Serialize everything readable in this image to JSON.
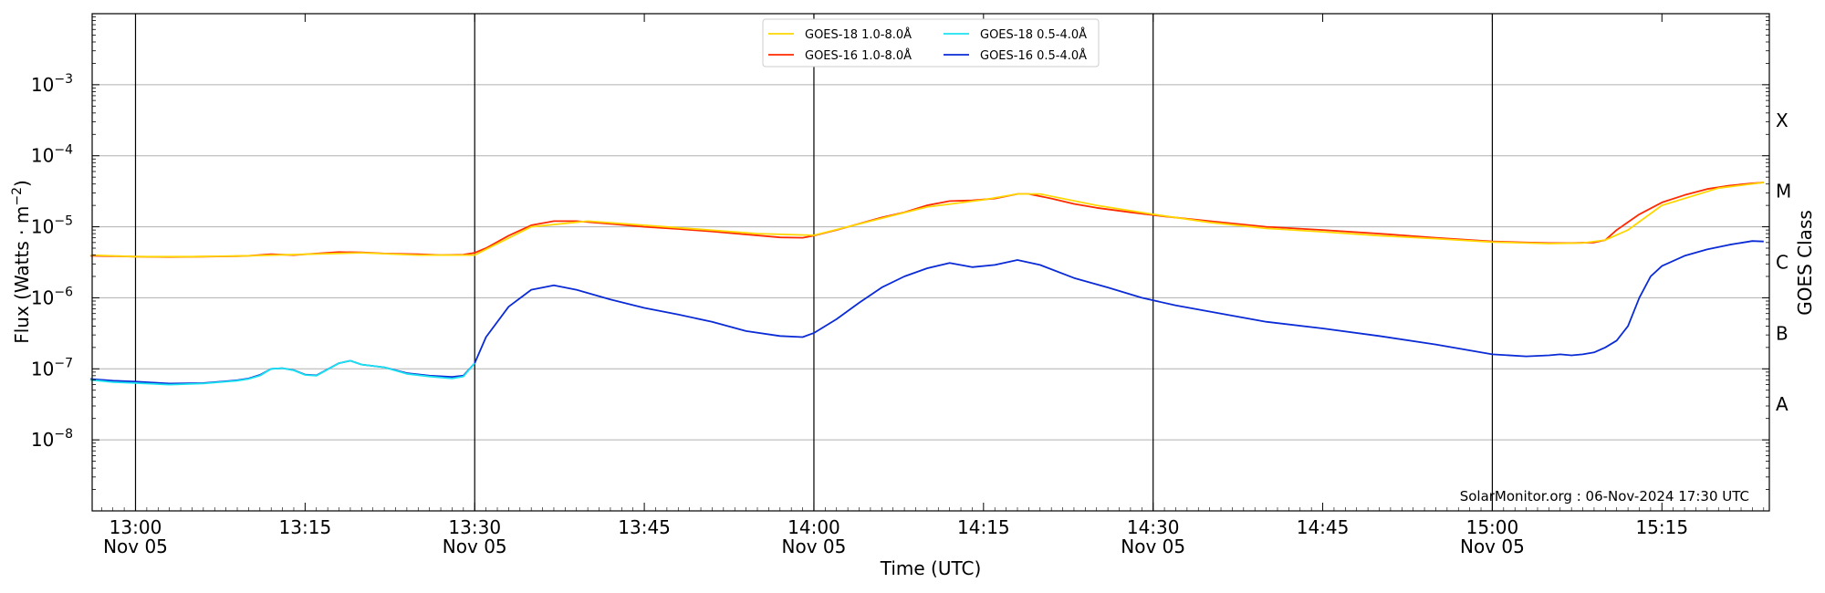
{
  "chart_data": {
    "type": "line",
    "ylabel_main": "Flux (Watts · m",
    "ylabel_exp": "−2",
    "ylabel_close": ")",
    "xlabel": "Time (UTC)",
    "right_label": "GOES Class",
    "credit": "SolarMonitor.org : 06-Nov-2024 17:30 UTC",
    "y_scale": "log",
    "ylim": [
      1e-09,
      0.01
    ],
    "y_ticks": [
      {
        "value": 1e-08,
        "exp": "−8"
      },
      {
        "value": 1e-07,
        "exp": "−7"
      },
      {
        "value": 1e-06,
        "exp": "−6"
      },
      {
        "value": 1e-05,
        "exp": "−5"
      },
      {
        "value": 0.0001,
        "exp": "−4"
      },
      {
        "value": 0.001,
        "exp": "−3"
      }
    ],
    "y_tick_base": "10",
    "xlim": [
      "2024-11-05 12:56:10",
      "2024-11-05 15:24:30"
    ],
    "x_ticks": [
      {
        "time": "13:00",
        "label": "13:00",
        "sub": "Nov 05"
      },
      {
        "time": "13:15",
        "label": "13:15",
        "sub": ""
      },
      {
        "time": "13:30",
        "label": "13:30",
        "sub": "Nov 05"
      },
      {
        "time": "13:45",
        "label": "13:45",
        "sub": ""
      },
      {
        "time": "14:00",
        "label": "14:00",
        "sub": "Nov 05"
      },
      {
        "time": "14:15",
        "label": "14:15",
        "sub": ""
      },
      {
        "time": "14:30",
        "label": "14:30",
        "sub": "Nov 05"
      },
      {
        "time": "14:45",
        "label": "14:45",
        "sub": ""
      },
      {
        "time": "15:00",
        "label": "15:00",
        "sub": "Nov 05"
      },
      {
        "time": "15:15",
        "label": "15:15",
        "sub": ""
      }
    ],
    "vlines": [
      "13:00",
      "13:30",
      "14:00",
      "14:30",
      "15:00"
    ],
    "goes_classes": [
      {
        "label": "A",
        "value": 3.16e-08
      },
      {
        "label": "B",
        "value": 3.16e-07
      },
      {
        "label": "C",
        "value": 3.16e-06
      },
      {
        "label": "M",
        "value": 3.16e-05
      },
      {
        "label": "X",
        "value": 0.000316
      }
    ],
    "grid": true,
    "legend_position": "top-center",
    "series": [
      {
        "name": "GOES-18 1.0-8.0Å",
        "color": "#ffd700",
        "x": [
          "12:56",
          "13:00",
          "13:05",
          "13:10",
          "13:15",
          "13:20",
          "13:25",
          "13:30",
          "13:35",
          "13:40",
          "13:45",
          "13:50",
          "13:55",
          "14:00",
          "14:05",
          "14:10",
          "14:15",
          "14:18",
          "14:20",
          "14:25",
          "14:30",
          "14:35",
          "14:40",
          "14:45",
          "14:50",
          "14:55",
          "15:00",
          "15:05",
          "15:08",
          "15:10",
          "15:12",
          "15:15",
          "15:20",
          "15:24"
        ],
        "y": [
          4e-06,
          3.8e-06,
          3.8e-06,
          3.9e-06,
          4.1e-06,
          4.3e-06,
          4e-06,
          4e-06,
          1e-05,
          1.2e-05,
          1.05e-05,
          9.2e-06,
          8e-06,
          7.6e-06,
          1.2e-05,
          1.9e-05,
          2.4e-05,
          2.9e-05,
          2.9e-05,
          2e-05,
          1.5e-05,
          1.15e-05,
          9.5e-06,
          8.5e-06,
          7.5e-06,
          6.8e-06,
          6.1e-06,
          5.8e-06,
          5.9e-06,
          6.5e-06,
          9e-06,
          2e-05,
          3.5e-05,
          4.2e-05
        ]
      },
      {
        "name": "GOES-16 1.0-8.0Å",
        "color": "#ff2a00",
        "x": [
          "12:56",
          "12:58",
          "13:00",
          "13:03",
          "13:06",
          "13:09",
          "13:10",
          "13:12",
          "13:14",
          "13:16",
          "13:18",
          "13:20",
          "13:22",
          "13:25",
          "13:27",
          "13:29",
          "13:30",
          "13:31",
          "13:33",
          "13:35",
          "13:37",
          "13:39",
          "13:42",
          "13:45",
          "13:48",
          "13:51",
          "13:54",
          "13:57",
          "13:59",
          "14:00",
          "14:02",
          "14:04",
          "14:06",
          "14:08",
          "14:10",
          "14:12",
          "14:14",
          "14:16",
          "14:18",
          "14:19",
          "14:21",
          "14:23",
          "14:25",
          "14:28",
          "14:31",
          "14:35",
          "14:40",
          "14:45",
          "14:50",
          "14:55",
          "15:00",
          "15:03",
          "15:05",
          "15:07",
          "15:09",
          "15:10",
          "15:11",
          "15:13",
          "15:15",
          "15:17",
          "15:19",
          "15:21",
          "15:23",
          "15:24"
        ],
        "y": [
          3.9e-06,
          3.85e-06,
          3.8e-06,
          3.75e-06,
          3.8e-06,
          3.85e-06,
          3.9e-06,
          4.1e-06,
          4e-06,
          4.2e-06,
          4.4e-06,
          4.35e-06,
          4.2e-06,
          4.1e-06,
          4e-06,
          4.05e-06,
          4.3e-06,
          5e-06,
          7.5e-06,
          1.05e-05,
          1.2e-05,
          1.2e-05,
          1.1e-05,
          1e-05,
          9.3e-06,
          8.6e-06,
          7.8e-06,
          7.1e-06,
          7e-06,
          7.5e-06,
          9e-06,
          1.1e-05,
          1.35e-05,
          1.6e-05,
          2e-05,
          2.3e-05,
          2.35e-05,
          2.5e-05,
          2.9e-05,
          2.9e-05,
          2.5e-05,
          2.1e-05,
          1.85e-05,
          1.6e-05,
          1.4e-05,
          1.2e-05,
          1e-05,
          9e-06,
          8e-06,
          7e-06,
          6.2e-06,
          6e-06,
          5.9e-06,
          5.9e-06,
          6e-06,
          6.5e-06,
          9e-06,
          1.5e-05,
          2.2e-05,
          2.8e-05,
          3.4e-05,
          3.8e-05,
          4.1e-05,
          4.2e-05
        ]
      },
      {
        "name": "GOES-18 0.5-4.0Å",
        "color": "#19e3f0",
        "x": [
          "12:56",
          "12:58",
          "13:00",
          "13:03",
          "13:06",
          "13:09",
          "13:10",
          "13:11",
          "13:12",
          "13:13",
          "13:14",
          "13:15",
          "13:16",
          "13:18",
          "13:19",
          "13:20",
          "13:22",
          "13:24",
          "13:26",
          "13:28",
          "13:29",
          "13:30"
        ],
        "y": [
          7e-08,
          6.5e-08,
          6.3e-08,
          6e-08,
          6.2e-08,
          6.8e-08,
          7.2e-08,
          8e-08,
          1e-07,
          1.02e-07,
          9.5e-08,
          8.2e-08,
          8e-08,
          1.2e-07,
          1.3e-07,
          1.15e-07,
          1.05e-07,
          8.5e-08,
          7.8e-08,
          7.3e-08,
          7.8e-08,
          1.2e-07
        ]
      },
      {
        "name": "GOES-16 0.5-4.0Å",
        "color": "#0a2bd6",
        "x": [
          "12:56",
          "12:58",
          "13:00",
          "13:03",
          "13:06",
          "13:09",
          "13:10",
          "13:11",
          "13:12",
          "13:13",
          "13:14",
          "13:15",
          "13:16",
          "13:18",
          "13:19",
          "13:20",
          "13:22",
          "13:24",
          "13:26",
          "13:28",
          "13:29",
          "13:30",
          "13:31",
          "13:33",
          "13:35",
          "13:37",
          "13:39",
          "13:42",
          "13:45",
          "13:48",
          "13:51",
          "13:54",
          "13:57",
          "13:59",
          "14:00",
          "14:02",
          "14:04",
          "14:06",
          "14:08",
          "14:10",
          "14:12",
          "14:14",
          "14:16",
          "14:18",
          "14:20",
          "14:23",
          "14:26",
          "14:29",
          "14:32",
          "14:36",
          "14:40",
          "14:45",
          "14:50",
          "14:55",
          "15:00",
          "15:03",
          "15:05",
          "15:06",
          "15:07",
          "15:08",
          "15:09",
          "15:10",
          "15:11",
          "15:12",
          "15:13",
          "15:14",
          "15:15",
          "15:17",
          "15:19",
          "15:21",
          "15:23",
          "15:24"
        ],
        "y": [
          7.2e-08,
          6.8e-08,
          6.6e-08,
          6.2e-08,
          6.3e-08,
          6.9e-08,
          7.3e-08,
          8.2e-08,
          1e-07,
          1.02e-07,
          9.6e-08,
          8.3e-08,
          8.1e-08,
          1.2e-07,
          1.3e-07,
          1.15e-07,
          1.05e-07,
          8.7e-08,
          8e-08,
          7.7e-08,
          8e-08,
          1.2e-07,
          2.8e-07,
          7.5e-07,
          1.3e-06,
          1.5e-06,
          1.3e-06,
          9.5e-07,
          7.2e-07,
          5.8e-07,
          4.6e-07,
          3.4e-07,
          2.9e-07,
          2.8e-07,
          3.2e-07,
          5e-07,
          8.5e-07,
          1.4e-06,
          2e-06,
          2.6e-06,
          3.1e-06,
          2.7e-06,
          2.9e-06,
          3.4e-06,
          2.9e-06,
          1.9e-06,
          1.4e-06,
          1e-06,
          7.8e-07,
          6e-07,
          4.6e-07,
          3.7e-07,
          2.9e-07,
          2.2e-07,
          1.6e-07,
          1.5e-07,
          1.55e-07,
          1.6e-07,
          1.55e-07,
          1.6e-07,
          1.7e-07,
          2e-07,
          2.5e-07,
          4e-07,
          1e-06,
          2e-06,
          2.8e-06,
          3.9e-06,
          4.8e-06,
          5.6e-06,
          6.3e-06,
          6.2e-06
        ]
      }
    ]
  }
}
